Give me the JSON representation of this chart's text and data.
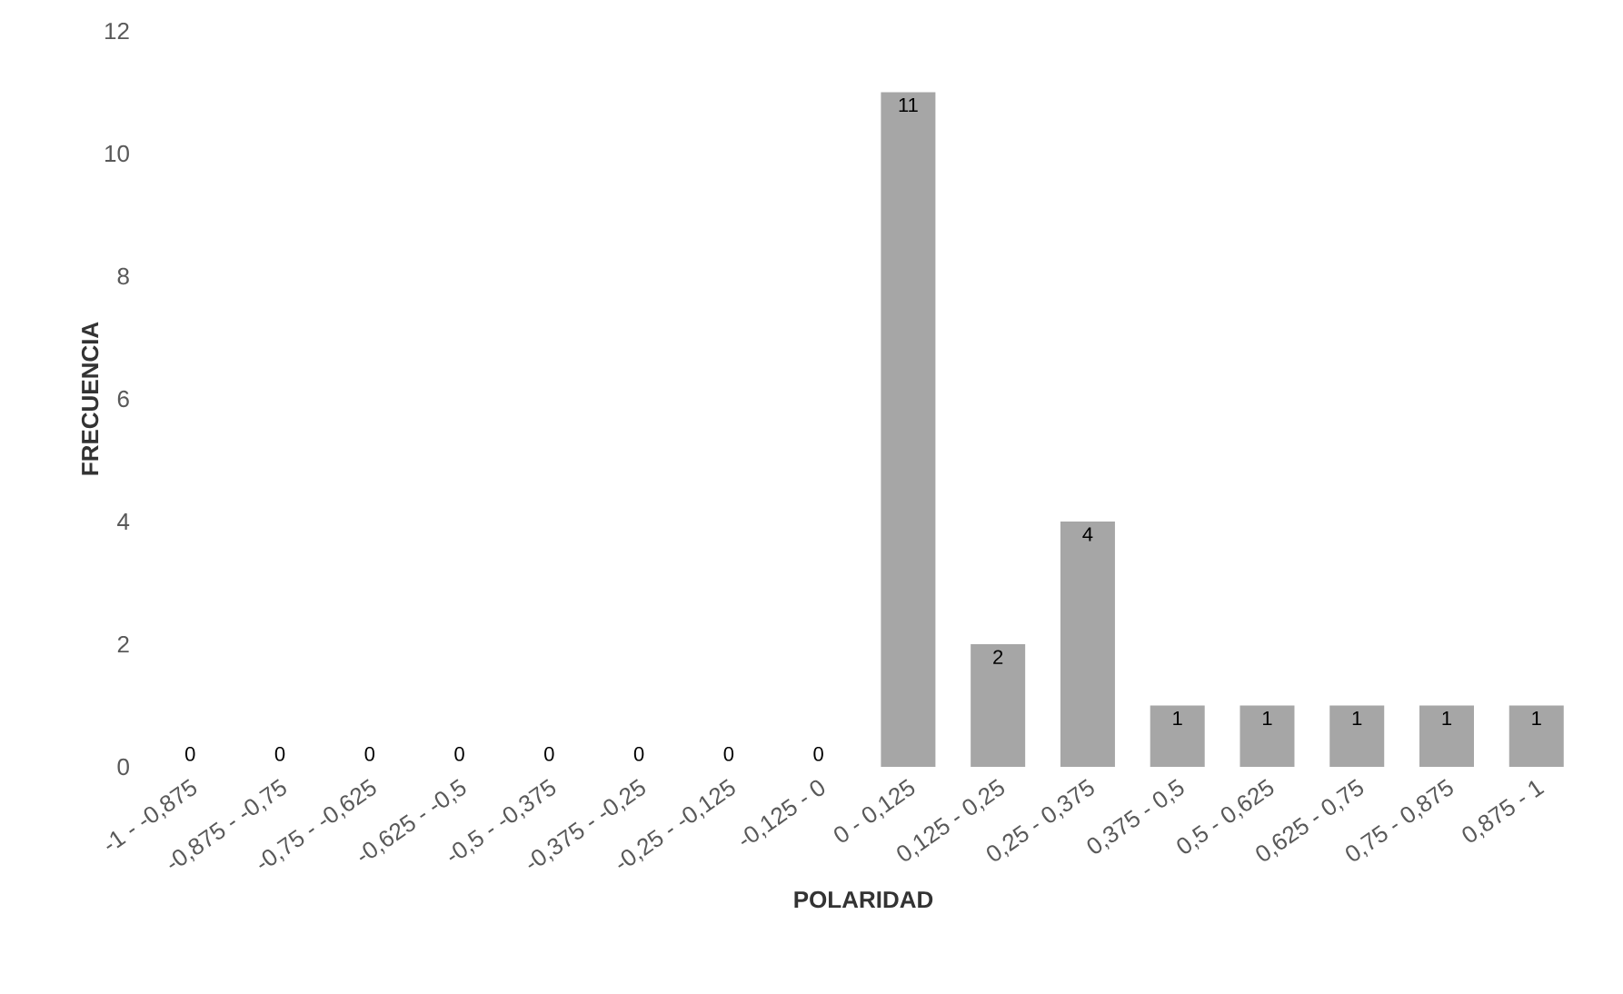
{
  "chart_data": {
    "type": "bar",
    "xlabel": "POLARIDAD",
    "ylabel": "FRECUENCIA",
    "categories": [
      "-1 - -0,875",
      "-0,875 - -0,75",
      "-0,75 - -0,625",
      "-0,625 - -0,5",
      "-0,5 - -0,375",
      "-0,375 - -0,25",
      "-0,25 - -0,125",
      "-0,125 - 0",
      "0 - 0,125",
      "0,125 - 0,25",
      "0,25 - 0,375",
      "0,375 - 0,5",
      "0,5 - 0,625",
      "0,625 - 0,75",
      "0,75 - 0,875",
      "0,875 - 1"
    ],
    "values": [
      0,
      0,
      0,
      0,
      0,
      0,
      0,
      0,
      11,
      2,
      4,
      1,
      1,
      1,
      1,
      1
    ],
    "color": "#a6a6a6",
    "ylim": [
      0,
      12
    ],
    "yticks": [
      0,
      2,
      4,
      6,
      8,
      10,
      12
    ],
    "data_labels": true,
    "grid": false
  }
}
